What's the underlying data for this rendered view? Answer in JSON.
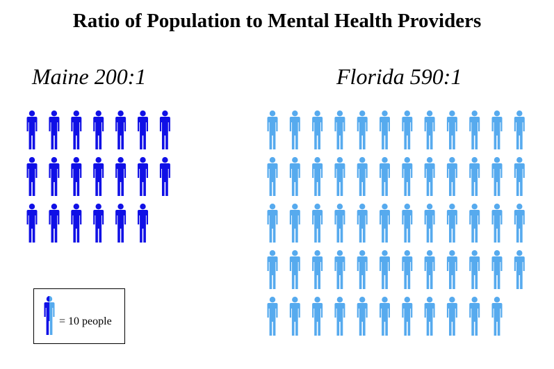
{
  "chart_data": {
    "type": "pictogram",
    "title": "Ratio of Population to Mental Health Providers",
    "unit_label": "= 10 people",
    "people_per_icon": 10,
    "series": [
      {
        "label": "Maine 200:1",
        "state": "Maine",
        "ratio": 200,
        "icons": 20,
        "icons_per_row": 7,
        "color": "#1010e6"
      },
      {
        "label": "Florida 590:1",
        "state": "Florida",
        "ratio": 590,
        "icons": 59,
        "icons_per_row": 12,
        "color": "#56aaee"
      }
    ],
    "legend": {
      "placement": "bottom-left",
      "colors": [
        "#1010e6",
        "#56aaee"
      ]
    }
  }
}
